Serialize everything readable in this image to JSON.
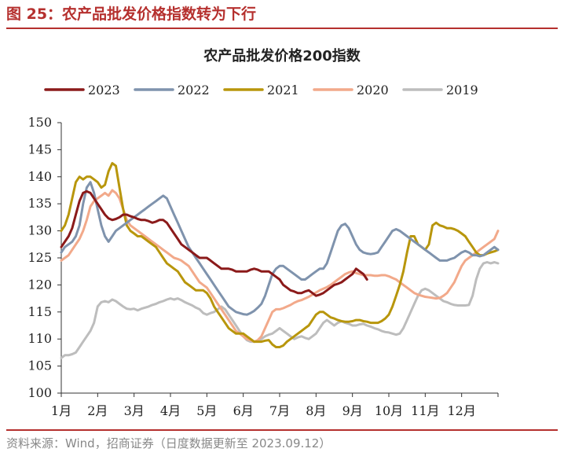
{
  "figure": {
    "label": "图 25：农产品批发价格指数转为下行",
    "source": "资料来源：Wind，招商证券（日度数据更新至 2023.09.12）"
  },
  "chart_data": {
    "type": "line",
    "title": "农产品批发价格200指数",
    "xlabel": "",
    "ylabel": "",
    "ylim": [
      100,
      150
    ],
    "yticks": [
      100,
      105,
      110,
      115,
      120,
      125,
      130,
      135,
      140,
      145,
      150
    ],
    "xticks": [
      "1月",
      "2月",
      "3月",
      "4月",
      "5月",
      "6月",
      "7月",
      "8月",
      "9月",
      "10月",
      "11月",
      "12月"
    ],
    "x_unit": "month (1.0 = start of 1月, 13.0 = end of 12月)",
    "legend_position": "top",
    "grid": false,
    "series": [
      {
        "name": "2023",
        "color": "#8B1A1A",
        "x": [
          1.0,
          1.1,
          1.2,
          1.3,
          1.4,
          1.5,
          1.6,
          1.7,
          1.8,
          1.9,
          2.0,
          2.1,
          2.2,
          2.3,
          2.4,
          2.5,
          2.6,
          2.7,
          2.8,
          2.9,
          3.0,
          3.1,
          3.2,
          3.3,
          3.4,
          3.5,
          3.6,
          3.7,
          3.8,
          3.9,
          4.0,
          4.1,
          4.2,
          4.3,
          4.4,
          4.5,
          4.6,
          4.7,
          4.8,
          4.9,
          5.0,
          5.1,
          5.2,
          5.3,
          5.4,
          5.5,
          5.6,
          5.7,
          5.8,
          5.9,
          6.0,
          6.1,
          6.2,
          6.3,
          6.4,
          6.5,
          6.6,
          6.7,
          6.8,
          6.9,
          7.0,
          7.1,
          7.2,
          7.3,
          7.4,
          7.5,
          7.6,
          7.7,
          7.8,
          7.9,
          8.0,
          8.1,
          8.2,
          8.3,
          8.4,
          8.5,
          8.6,
          8.7,
          8.8,
          8.9,
          9.0,
          9.1,
          9.2,
          9.3,
          9.4
        ],
        "values": [
          127.0,
          128.0,
          129.0,
          130.5,
          133.0,
          135.5,
          137.0,
          137.3,
          137.0,
          136.0,
          135.0,
          134.0,
          133.0,
          132.3,
          132.0,
          132.2,
          132.5,
          133.0,
          133.0,
          132.7,
          132.5,
          132.2,
          132.0,
          132.0,
          131.8,
          131.5,
          131.7,
          132.0,
          132.0,
          131.5,
          130.5,
          129.5,
          128.5,
          127.5,
          127.0,
          126.5,
          126.0,
          125.5,
          125.0,
          125.0,
          125.0,
          124.5,
          124.0,
          123.5,
          123.0,
          123.0,
          123.0,
          122.8,
          122.5,
          122.5,
          122.5,
          122.5,
          122.8,
          123.0,
          122.8,
          122.5,
          122.5,
          122.5,
          122.0,
          121.5,
          121.0,
          120.0,
          119.5,
          119.0,
          118.8,
          118.5,
          118.5,
          118.8,
          119.0,
          118.5,
          118.0,
          118.2,
          118.5,
          119.0,
          119.5,
          120.0,
          120.2,
          120.5,
          121.0,
          121.5,
          122.0,
          123.0,
          122.5,
          122.0,
          121.0
        ]
      },
      {
        "name": "2022",
        "color": "#7F93AD",
        "x": [
          1.0,
          1.1,
          1.2,
          1.3,
          1.4,
          1.5,
          1.6,
          1.7,
          1.8,
          1.9,
          2.0,
          2.1,
          2.2,
          2.3,
          2.4,
          2.5,
          2.6,
          2.7,
          2.8,
          2.9,
          3.0,
          3.1,
          3.2,
          3.3,
          3.4,
          3.5,
          3.6,
          3.7,
          3.8,
          3.9,
          4.0,
          4.1,
          4.2,
          4.3,
          4.4,
          4.5,
          4.6,
          4.7,
          4.8,
          4.9,
          5.0,
          5.1,
          5.2,
          5.3,
          5.4,
          5.5,
          5.6,
          5.7,
          5.8,
          5.9,
          6.0,
          6.1,
          6.2,
          6.3,
          6.4,
          6.5,
          6.6,
          6.7,
          6.8,
          6.9,
          7.0,
          7.1,
          7.2,
          7.3,
          7.4,
          7.5,
          7.6,
          7.7,
          7.8,
          7.9,
          8.0,
          8.1,
          8.2,
          8.3,
          8.4,
          8.5,
          8.6,
          8.7,
          8.8,
          8.9,
          9.0,
          9.1,
          9.2,
          9.3,
          9.4,
          9.5,
          9.6,
          9.7,
          9.8,
          9.9,
          10.0,
          10.1,
          10.2,
          10.3,
          10.4,
          10.5,
          10.6,
          10.7,
          10.8,
          10.9,
          11.0,
          11.1,
          11.2,
          11.3,
          11.4,
          11.5,
          11.6,
          11.7,
          11.8,
          11.9,
          12.0,
          12.1,
          12.2,
          12.3,
          12.4,
          12.5,
          12.6,
          12.7,
          12.8,
          12.9,
          13.0
        ],
        "values": [
          126.0,
          127.0,
          127.5,
          128.0,
          129.0,
          131.0,
          135.0,
          138.0,
          139.0,
          137.0,
          134.0,
          131.0,
          129.0,
          128.0,
          129.0,
          130.0,
          130.5,
          131.0,
          131.5,
          132.0,
          132.5,
          133.0,
          133.5,
          134.0,
          134.5,
          135.0,
          135.5,
          136.0,
          136.5,
          136.0,
          134.5,
          133.0,
          131.5,
          130.0,
          128.5,
          127.0,
          126.0,
          125.0,
          124.0,
          123.0,
          122.0,
          121.0,
          120.0,
          119.0,
          118.0,
          117.0,
          116.0,
          115.5,
          115.0,
          114.8,
          114.6,
          114.5,
          114.8,
          115.2,
          115.8,
          116.5,
          118.0,
          120.0,
          122.0,
          123.0,
          123.5,
          123.5,
          123.0,
          122.5,
          122.0,
          121.5,
          121.0,
          121.0,
          121.5,
          122.0,
          122.5,
          123.0,
          123.0,
          124.0,
          126.0,
          128.0,
          130.0,
          131.0,
          131.3,
          130.5,
          129.0,
          127.5,
          126.5,
          126.0,
          125.8,
          125.7,
          125.8,
          126.0,
          127.0,
          128.0,
          129.0,
          130.0,
          130.3,
          130.0,
          129.5,
          129.0,
          128.5,
          128.0,
          127.5,
          127.0,
          126.5,
          126.0,
          125.5,
          125.0,
          124.5,
          124.5,
          124.5,
          124.8,
          125.0,
          125.5,
          126.0,
          126.3,
          126.0,
          125.5,
          125.5,
          125.3,
          125.5,
          126.0,
          126.5,
          127.0,
          126.5
        ]
      },
      {
        "name": "2021",
        "color": "#B8960C",
        "x": [
          1.0,
          1.1,
          1.2,
          1.3,
          1.4,
          1.5,
          1.6,
          1.7,
          1.8,
          1.9,
          2.0,
          2.1,
          2.2,
          2.3,
          2.4,
          2.5,
          2.6,
          2.7,
          2.8,
          2.9,
          3.0,
          3.1,
          3.2,
          3.3,
          3.4,
          3.5,
          3.6,
          3.7,
          3.8,
          3.9,
          4.0,
          4.1,
          4.2,
          4.3,
          4.4,
          4.5,
          4.6,
          4.7,
          4.8,
          4.9,
          5.0,
          5.1,
          5.2,
          5.3,
          5.4,
          5.5,
          5.6,
          5.7,
          5.8,
          5.9,
          6.0,
          6.1,
          6.2,
          6.3,
          6.4,
          6.5,
          6.6,
          6.7,
          6.8,
          6.9,
          7.0,
          7.1,
          7.2,
          7.3,
          7.4,
          7.5,
          7.6,
          7.7,
          7.8,
          7.9,
          8.0,
          8.1,
          8.2,
          8.3,
          8.4,
          8.5,
          8.6,
          8.7,
          8.8,
          8.9,
          9.0,
          9.1,
          9.2,
          9.3,
          9.4,
          9.5,
          9.6,
          9.7,
          9.8,
          9.9,
          10.0,
          10.1,
          10.2,
          10.3,
          10.4,
          10.5,
          10.6,
          10.7,
          10.8,
          10.9,
          11.0,
          11.1,
          11.2,
          11.3,
          11.4,
          11.5,
          11.6,
          11.7,
          11.8,
          11.9,
          12.0,
          12.1,
          12.2,
          12.3,
          12.4,
          12.5,
          12.6,
          12.7,
          12.8,
          12.9,
          13.0
        ],
        "values": [
          130.0,
          131.0,
          133.0,
          136.0,
          139.0,
          140.0,
          139.5,
          140.0,
          140.0,
          139.5,
          139.0,
          138.0,
          138.5,
          141.0,
          142.5,
          142.0,
          138.0,
          134.0,
          131.0,
          130.0,
          129.5,
          129.0,
          129.0,
          128.5,
          128.0,
          127.5,
          127.0,
          126.0,
          125.0,
          124.0,
          123.5,
          123.0,
          122.5,
          121.5,
          120.5,
          120.0,
          119.5,
          119.0,
          119.0,
          119.0,
          118.5,
          117.5,
          116.0,
          115.0,
          114.0,
          113.0,
          112.0,
          111.5,
          111.0,
          111.0,
          111.0,
          110.5,
          110.0,
          109.5,
          109.5,
          109.5,
          109.7,
          109.8,
          109.0,
          108.5,
          108.5,
          108.8,
          109.5,
          110.0,
          110.5,
          111.0,
          111.5,
          112.0,
          112.5,
          113.5,
          114.5,
          115.0,
          115.0,
          114.5,
          114.0,
          113.8,
          113.5,
          113.3,
          113.2,
          113.2,
          113.3,
          113.5,
          113.5,
          113.3,
          113.2,
          113.0,
          113.0,
          113.0,
          113.3,
          113.8,
          114.5,
          116.0,
          118.0,
          120.0,
          122.5,
          126.0,
          129.0,
          129.0,
          127.5,
          127.0,
          126.5,
          127.5,
          131.0,
          131.5,
          131.0,
          130.8,
          130.5,
          130.5,
          130.3,
          130.0,
          129.5,
          129.0,
          128.0,
          127.0,
          126.0,
          125.5,
          125.5,
          125.8,
          126.0,
          126.2,
          126.5
        ]
      },
      {
        "name": "2020",
        "color": "#F2A98A",
        "x": [
          1.0,
          1.1,
          1.2,
          1.3,
          1.4,
          1.5,
          1.6,
          1.7,
          1.8,
          1.9,
          2.0,
          2.1,
          2.2,
          2.3,
          2.4,
          2.5,
          2.6,
          2.7,
          2.8,
          2.9,
          3.0,
          3.1,
          3.2,
          3.3,
          3.4,
          3.5,
          3.6,
          3.7,
          3.8,
          3.9,
          4.0,
          4.1,
          4.2,
          4.3,
          4.4,
          4.5,
          4.6,
          4.7,
          4.8,
          4.9,
          5.0,
          5.1,
          5.2,
          5.3,
          5.4,
          5.5,
          5.6,
          5.7,
          5.8,
          5.9,
          6.0,
          6.1,
          6.2,
          6.3,
          6.4,
          6.5,
          6.6,
          6.7,
          6.8,
          6.9,
          7.0,
          7.1,
          7.2,
          7.3,
          7.4,
          7.5,
          7.6,
          7.7,
          7.8,
          7.9,
          8.0,
          8.1,
          8.2,
          8.3,
          8.4,
          8.5,
          8.6,
          8.7,
          8.8,
          8.9,
          9.0,
          9.1,
          9.2,
          9.3,
          9.4,
          9.5,
          9.6,
          9.7,
          9.8,
          9.9,
          10.0,
          10.1,
          10.2,
          10.3,
          10.4,
          10.5,
          10.6,
          10.7,
          10.8,
          10.9,
          11.0,
          11.1,
          11.2,
          11.3,
          11.4,
          11.5,
          11.6,
          11.7,
          11.8,
          11.9,
          12.0,
          12.1,
          12.2,
          12.3,
          12.4,
          12.5,
          12.6,
          12.7,
          12.8,
          12.9,
          13.0
        ],
        "values": [
          124.5,
          125.0,
          125.5,
          126.5,
          127.5,
          128.5,
          130.0,
          132.0,
          134.5,
          135.5,
          136.0,
          136.5,
          137.0,
          136.5,
          137.5,
          137.0,
          136.0,
          134.0,
          132.0,
          131.0,
          130.5,
          130.0,
          129.5,
          129.0,
          128.5,
          128.0,
          127.5,
          127.0,
          126.5,
          126.0,
          125.5,
          125.0,
          124.8,
          124.5,
          124.0,
          123.5,
          122.5,
          121.5,
          120.5,
          120.0,
          119.5,
          118.5,
          117.5,
          116.5,
          115.5,
          114.5,
          113.5,
          112.5,
          111.5,
          111.0,
          110.5,
          110.0,
          109.8,
          109.5,
          109.8,
          110.5,
          112.0,
          113.5,
          115.0,
          115.5,
          115.5,
          115.7,
          116.0,
          116.3,
          116.7,
          117.0,
          117.2,
          117.5,
          117.8,
          118.2,
          118.6,
          119.0,
          119.3,
          119.6,
          120.0,
          120.5,
          121.0,
          121.5,
          122.0,
          122.3,
          122.5,
          122.2,
          122.0,
          121.8,
          121.8,
          121.8,
          121.7,
          121.7,
          121.8,
          121.8,
          121.6,
          121.3,
          121.0,
          120.5,
          120.0,
          119.5,
          119.0,
          118.5,
          118.2,
          118.0,
          117.8,
          117.7,
          117.6,
          117.5,
          117.6,
          118.0,
          118.5,
          119.5,
          120.5,
          122.0,
          123.5,
          124.5,
          125.0,
          125.5,
          126.0,
          126.5,
          127.0,
          127.5,
          128.0,
          128.5,
          130.0
        ]
      },
      {
        "name": "2019",
        "color": "#BDBDBD",
        "x": [
          1.0,
          1.1,
          1.2,
          1.3,
          1.4,
          1.5,
          1.6,
          1.7,
          1.8,
          1.9,
          2.0,
          2.1,
          2.2,
          2.3,
          2.4,
          2.5,
          2.6,
          2.7,
          2.8,
          2.9,
          3.0,
          3.1,
          3.2,
          3.3,
          3.4,
          3.5,
          3.6,
          3.7,
          3.8,
          3.9,
          4.0,
          4.1,
          4.2,
          4.3,
          4.4,
          4.5,
          4.6,
          4.7,
          4.8,
          4.9,
          5.0,
          5.1,
          5.2,
          5.3,
          5.4,
          5.5,
          5.6,
          5.7,
          5.8,
          5.9,
          6.0,
          6.1,
          6.2,
          6.3,
          6.4,
          6.5,
          6.6,
          6.7,
          6.8,
          6.9,
          7.0,
          7.1,
          7.2,
          7.3,
          7.4,
          7.5,
          7.6,
          7.7,
          7.8,
          7.9,
          8.0,
          8.1,
          8.2,
          8.3,
          8.4,
          8.5,
          8.6,
          8.7,
          8.8,
          8.9,
          9.0,
          9.1,
          9.2,
          9.3,
          9.4,
          9.5,
          9.6,
          9.7,
          9.8,
          9.9,
          10.0,
          10.1,
          10.2,
          10.3,
          10.4,
          10.5,
          10.6,
          10.7,
          10.8,
          10.9,
          11.0,
          11.1,
          11.2,
          11.3,
          11.4,
          11.5,
          11.6,
          11.7,
          11.8,
          11.9,
          12.0,
          12.1,
          12.2,
          12.3,
          12.4,
          12.5,
          12.6,
          12.7,
          12.8,
          12.9,
          13.0
        ],
        "values": [
          106.5,
          107.0,
          107.0,
          107.2,
          107.5,
          108.5,
          109.5,
          110.5,
          111.5,
          113.0,
          116.0,
          116.8,
          117.0,
          116.8,
          117.3,
          117.0,
          116.5,
          116.0,
          115.6,
          115.5,
          115.6,
          115.3,
          115.6,
          115.8,
          116.0,
          116.3,
          116.5,
          116.8,
          117.0,
          117.3,
          117.5,
          117.3,
          117.5,
          117.2,
          116.8,
          116.5,
          116.2,
          115.8,
          115.5,
          114.8,
          114.5,
          114.8,
          115.0,
          115.5,
          116.0,
          115.5,
          114.5,
          113.5,
          112.5,
          111.5,
          110.5,
          109.8,
          109.5,
          109.5,
          109.6,
          110.0,
          110.5,
          110.8,
          111.0,
          111.5,
          112.0,
          111.5,
          111.0,
          110.5,
          110.0,
          110.3,
          110.5,
          110.2,
          110.0,
          110.5,
          111.0,
          112.0,
          113.0,
          113.5,
          113.0,
          112.5,
          113.0,
          113.3,
          113.0,
          112.8,
          112.5,
          112.5,
          112.7,
          112.8,
          112.5,
          112.3,
          112.0,
          111.8,
          111.5,
          111.3,
          111.2,
          111.0,
          110.8,
          111.0,
          112.0,
          113.5,
          115.0,
          116.5,
          118.0,
          119.0,
          119.3,
          119.0,
          118.5,
          118.0,
          117.5,
          117.0,
          116.8,
          116.5,
          116.3,
          116.2,
          116.2,
          116.2,
          116.3,
          118.0,
          121.0,
          123.0,
          124.0,
          124.2,
          124.0,
          124.2,
          124.0
        ]
      }
    ]
  }
}
